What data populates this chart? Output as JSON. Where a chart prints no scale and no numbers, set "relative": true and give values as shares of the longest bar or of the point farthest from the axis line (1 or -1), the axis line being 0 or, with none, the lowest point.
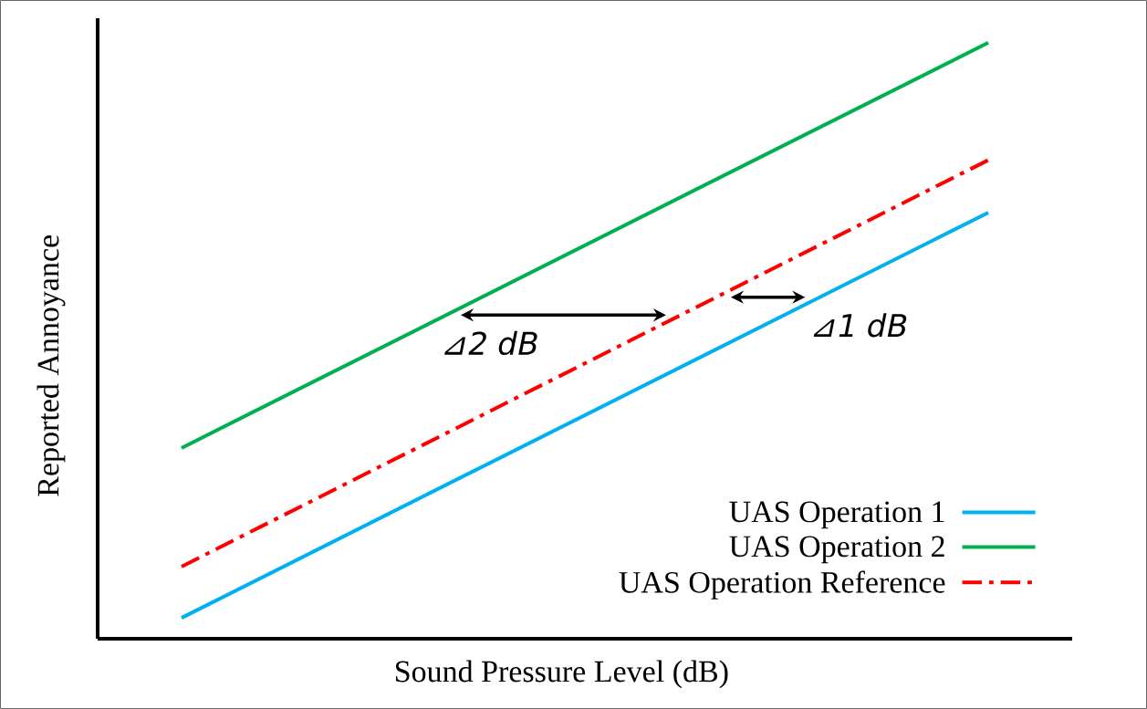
{
  "chart_data": {
    "type": "line",
    "relative": true,
    "xlabel": "Sound Pressure Level (dB)",
    "ylabel": "Reported Annoyance",
    "legend": "bottom right",
    "categories": [
      null,
      null
    ],
    "series": [
      {
        "name": "UAS Operation 1",
        "color": "#00b0f0",
        "values": [
          0.035,
          0.715
        ],
        "line_style": "solid"
      },
      {
        "name": "UAS Operation 2",
        "color": "#00b050",
        "values": [
          0.32,
          1
        ],
        "line_style": "solid"
      },
      {
        "name": "UAS Operation Reference",
        "color": "#ff0000",
        "values": [
          0.121,
          0.803
        ],
        "line_style": "dashdot"
      }
    ],
    "annotations": [
      "⊿2 dB",
      "⊿1 dB"
    ]
  }
}
